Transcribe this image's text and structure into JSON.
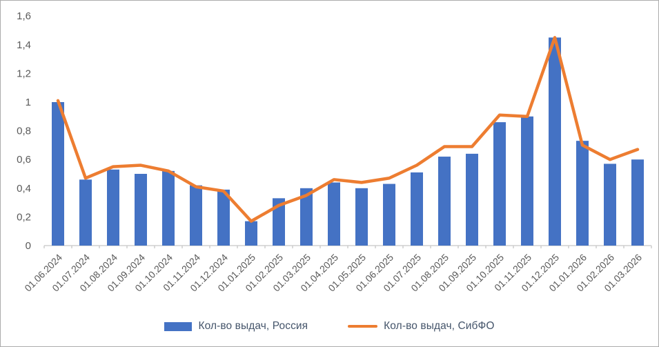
{
  "chart_data": {
    "type": "bar",
    "combo": "bar+line",
    "title": "",
    "xlabel": "",
    "ylabel": "",
    "categories": [
      "01.06.2024",
      "01.07.2024",
      "01.08.2024",
      "01.09.2024",
      "01.10.2024",
      "01.11.2024",
      "01.12.2024",
      "01.01.2025",
      "01.02.2025",
      "01.03.2025",
      "01.04.2025",
      "01.05.2025",
      "01.06.2025",
      "01.07.2025",
      "01.08.2025",
      "01.09.2025",
      "01.10.2025",
      "01.11.2025",
      "01.12.2025",
      "01.01.2026",
      "01.02.2026",
      "01.03.2026"
    ],
    "series": [
      {
        "name": "Кол-во выдач, Россия",
        "type": "bar",
        "color": "#4472C4",
        "values": [
          1.0,
          0.46,
          0.53,
          0.5,
          0.52,
          0.42,
          0.39,
          0.17,
          0.33,
          0.4,
          0.44,
          0.4,
          0.43,
          0.51,
          0.62,
          0.64,
          0.86,
          0.9,
          1.45,
          0.73,
          0.57,
          0.6
        ]
      },
      {
        "name": "Кол-во выдач, СибФО",
        "type": "line",
        "color": "#ED7D31",
        "values": [
          1.01,
          0.47,
          0.55,
          0.56,
          0.52,
          0.41,
          0.38,
          0.17,
          0.28,
          0.35,
          0.46,
          0.44,
          0.47,
          0.56,
          0.69,
          0.69,
          0.91,
          0.9,
          1.45,
          0.7,
          0.6,
          0.67
        ]
      }
    ],
    "ylim": [
      0,
      1.6
    ],
    "ytick_step": 0.2,
    "ytick_labels": [
      "0",
      "0,2",
      "0,4",
      "0,6",
      "0,8",
      "1",
      "1,2",
      "1,4",
      "1,6"
    ],
    "grid": false,
    "legend_position": "bottom",
    "axis_color": "#C6C6C6",
    "tick_label_color": "#595959",
    "legend_text_color": "#44546A",
    "background_color": "#FFFFFF"
  }
}
